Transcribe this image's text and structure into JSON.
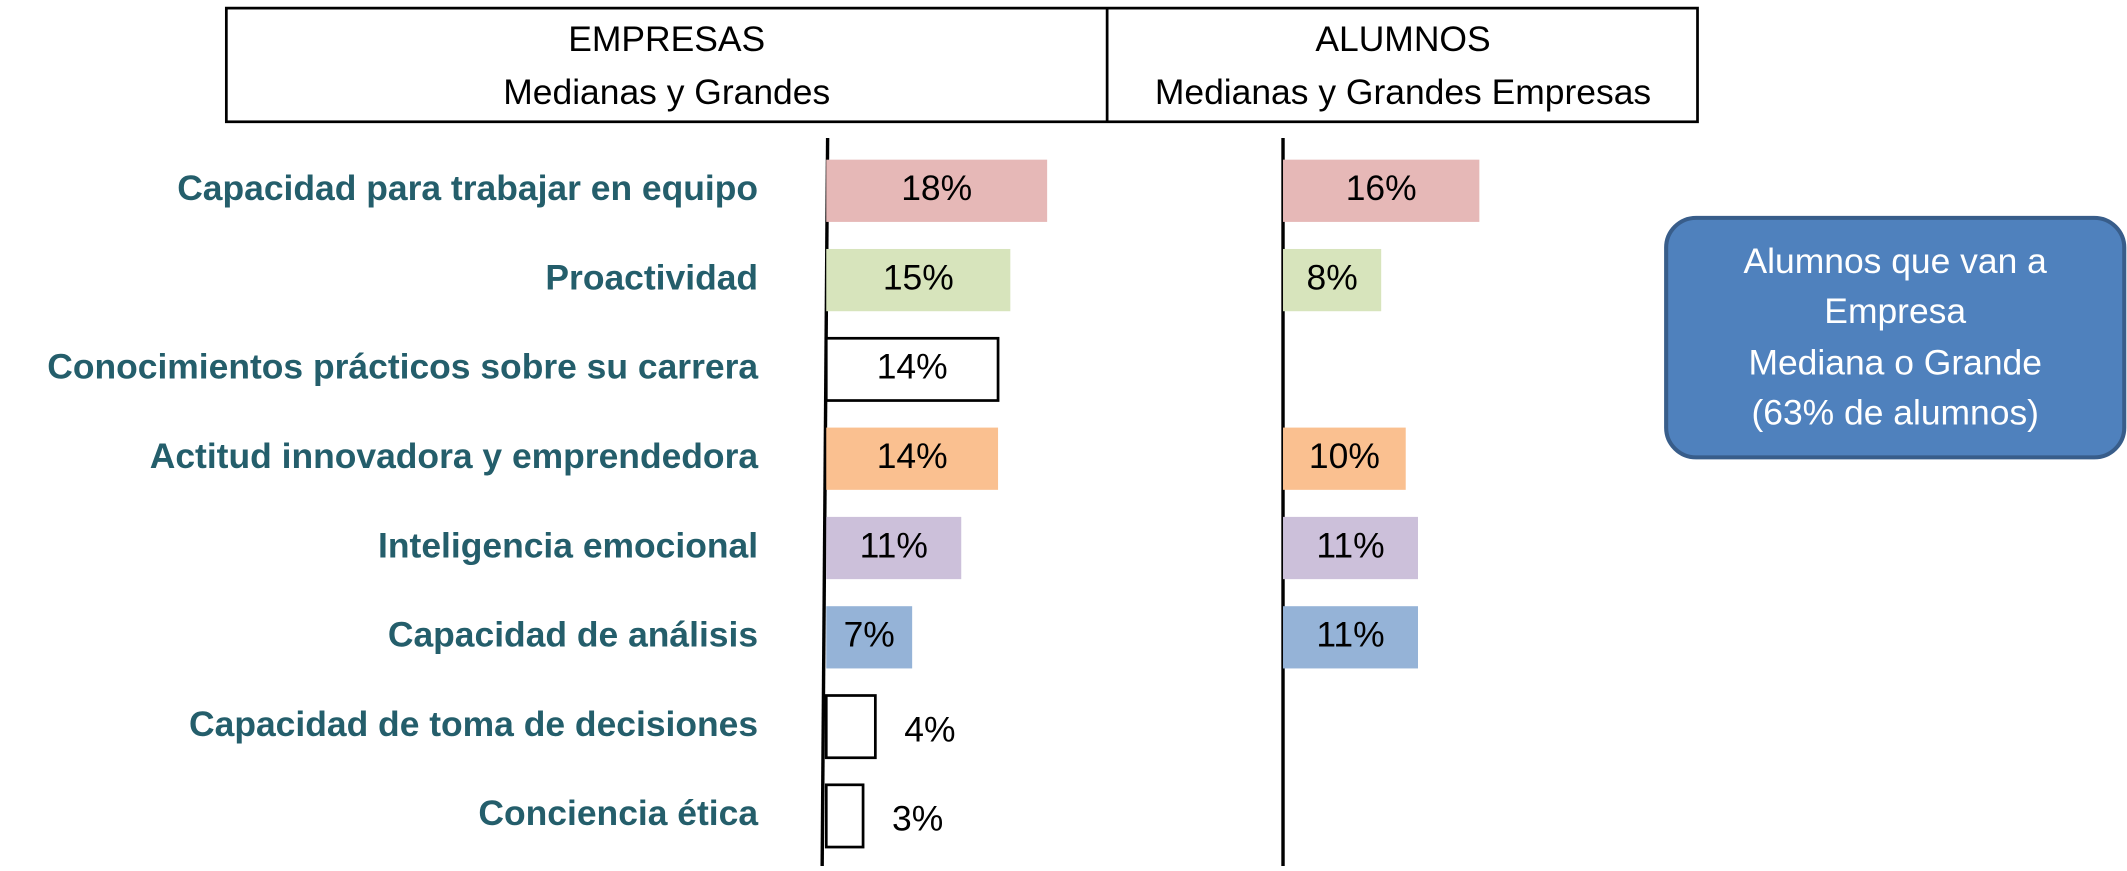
{
  "header": {
    "columns": [
      {
        "lines": [
          "EMPRESAS",
          "Medianas y Grandes"
        ]
      },
      {
        "lines": [
          "ALUMNOS",
          "Medianas y Grandes Empresas"
        ]
      }
    ]
  },
  "chart_data": [
    {
      "type": "bar",
      "orientation": "horizontal",
      "categories": [
        "Capacidad para trabajar en equipo",
        "Proactividad",
        "Conocimientos prácticos sobre su carrera",
        "Actitud innovadora y emprendedora",
        "Inteligencia emocional",
        "Capacidad de análisis",
        "Capacidad de toma de decisiones",
        "Conciencia ética"
      ],
      "values": [
        18,
        15,
        14,
        14,
        11,
        7,
        4,
        3
      ],
      "value_labels": [
        "18%",
        "15%",
        "14%",
        "14%",
        "11%",
        "7%",
        "4%",
        "3%"
      ],
      "colors": [
        "#e6b8b7",
        "#d7e4bc",
        "#ffffff",
        "#fac090",
        "#ccc0da",
        "#95b3d7",
        "#ffffff",
        "#ffffff"
      ]
    },
    {
      "type": "bar",
      "orientation": "horizontal",
      "values": [
        16,
        8,
        null,
        10,
        11,
        11,
        null,
        null
      ],
      "value_labels": [
        "16%",
        "8%",
        null,
        "10%",
        "11%",
        "11%",
        null,
        null
      ],
      "colors": [
        "#e6b8b7",
        "#d7e4bc",
        null,
        "#fac090",
        "#ccc0da",
        "#95b3d7",
        null,
        null
      ]
    }
  ],
  "callout": {
    "lines": [
      "Alumnos que van a",
      "Empresa",
      "Mediana o Grande",
      "(63% de alumnos)"
    ]
  }
}
